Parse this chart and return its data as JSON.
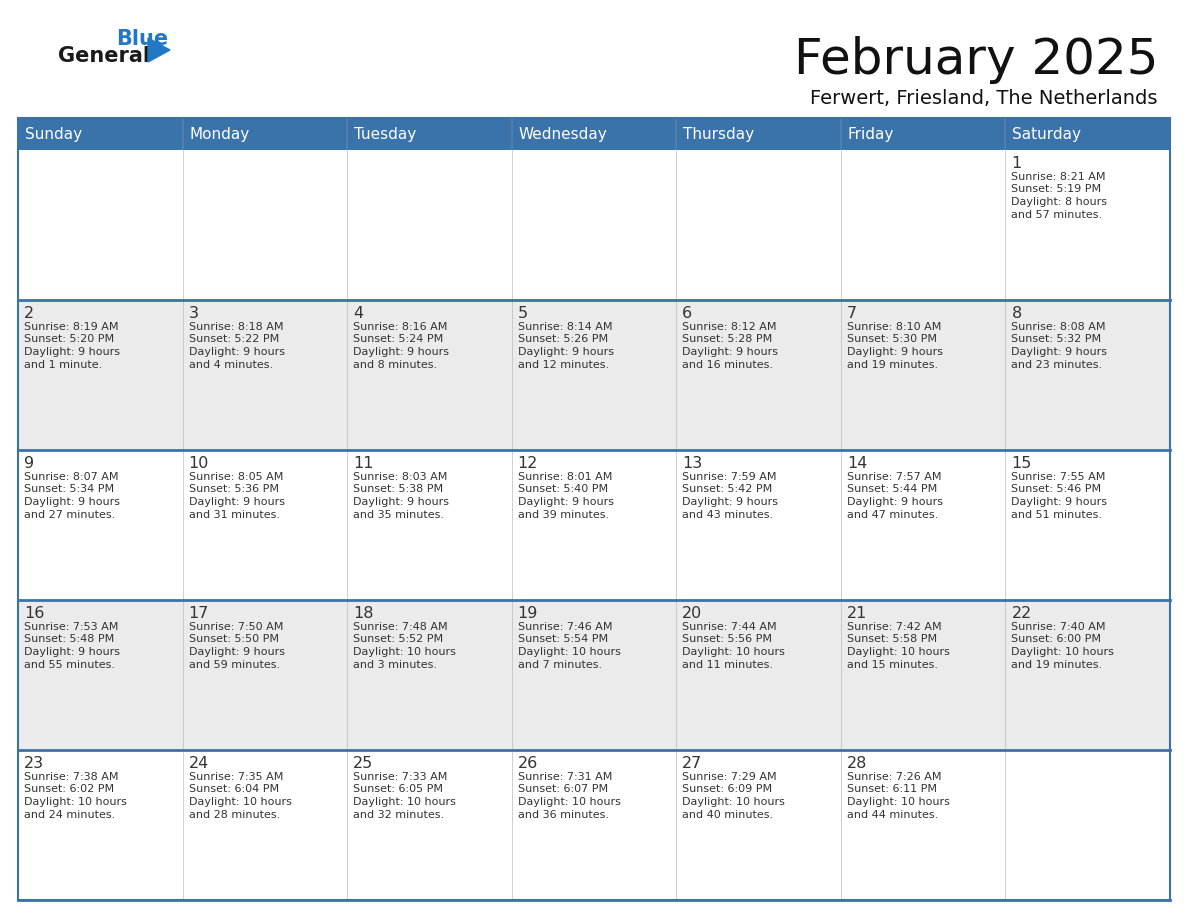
{
  "title": "February 2025",
  "subtitle": "Ferwert, Friesland, The Netherlands",
  "days_of_week": [
    "Sunday",
    "Monday",
    "Tuesday",
    "Wednesday",
    "Thursday",
    "Friday",
    "Saturday"
  ],
  "header_color": "#3a72aa",
  "header_text_color": "#ffffff",
  "cell_bg_row0": "#ebebeb",
  "cell_bg_row1": "#f5f5f5",
  "cell_bg_row2": "#ebebeb",
  "cell_bg_row3": "#f5f5f5",
  "cell_bg_row4": "#ebebeb",
  "border_color": "#3a72aa",
  "day_number_color": "#333333",
  "text_color": "#333333",
  "logo_general_color": "#1a1a1a",
  "logo_blue_color": "#2178c4",
  "calendar_data": [
    [
      {
        "day": null,
        "info": ""
      },
      {
        "day": null,
        "info": ""
      },
      {
        "day": null,
        "info": ""
      },
      {
        "day": null,
        "info": ""
      },
      {
        "day": null,
        "info": ""
      },
      {
        "day": null,
        "info": ""
      },
      {
        "day": 1,
        "info": "Sunrise: 8:21 AM\nSunset: 5:19 PM\nDaylight: 8 hours\nand 57 minutes."
      }
    ],
    [
      {
        "day": 2,
        "info": "Sunrise: 8:19 AM\nSunset: 5:20 PM\nDaylight: 9 hours\nand 1 minute."
      },
      {
        "day": 3,
        "info": "Sunrise: 8:18 AM\nSunset: 5:22 PM\nDaylight: 9 hours\nand 4 minutes."
      },
      {
        "day": 4,
        "info": "Sunrise: 8:16 AM\nSunset: 5:24 PM\nDaylight: 9 hours\nand 8 minutes."
      },
      {
        "day": 5,
        "info": "Sunrise: 8:14 AM\nSunset: 5:26 PM\nDaylight: 9 hours\nand 12 minutes."
      },
      {
        "day": 6,
        "info": "Sunrise: 8:12 AM\nSunset: 5:28 PM\nDaylight: 9 hours\nand 16 minutes."
      },
      {
        "day": 7,
        "info": "Sunrise: 8:10 AM\nSunset: 5:30 PM\nDaylight: 9 hours\nand 19 minutes."
      },
      {
        "day": 8,
        "info": "Sunrise: 8:08 AM\nSunset: 5:32 PM\nDaylight: 9 hours\nand 23 minutes."
      }
    ],
    [
      {
        "day": 9,
        "info": "Sunrise: 8:07 AM\nSunset: 5:34 PM\nDaylight: 9 hours\nand 27 minutes."
      },
      {
        "day": 10,
        "info": "Sunrise: 8:05 AM\nSunset: 5:36 PM\nDaylight: 9 hours\nand 31 minutes."
      },
      {
        "day": 11,
        "info": "Sunrise: 8:03 AM\nSunset: 5:38 PM\nDaylight: 9 hours\nand 35 minutes."
      },
      {
        "day": 12,
        "info": "Sunrise: 8:01 AM\nSunset: 5:40 PM\nDaylight: 9 hours\nand 39 minutes."
      },
      {
        "day": 13,
        "info": "Sunrise: 7:59 AM\nSunset: 5:42 PM\nDaylight: 9 hours\nand 43 minutes."
      },
      {
        "day": 14,
        "info": "Sunrise: 7:57 AM\nSunset: 5:44 PM\nDaylight: 9 hours\nand 47 minutes."
      },
      {
        "day": 15,
        "info": "Sunrise: 7:55 AM\nSunset: 5:46 PM\nDaylight: 9 hours\nand 51 minutes."
      }
    ],
    [
      {
        "day": 16,
        "info": "Sunrise: 7:53 AM\nSunset: 5:48 PM\nDaylight: 9 hours\nand 55 minutes."
      },
      {
        "day": 17,
        "info": "Sunrise: 7:50 AM\nSunset: 5:50 PM\nDaylight: 9 hours\nand 59 minutes."
      },
      {
        "day": 18,
        "info": "Sunrise: 7:48 AM\nSunset: 5:52 PM\nDaylight: 10 hours\nand 3 minutes."
      },
      {
        "day": 19,
        "info": "Sunrise: 7:46 AM\nSunset: 5:54 PM\nDaylight: 10 hours\nand 7 minutes."
      },
      {
        "day": 20,
        "info": "Sunrise: 7:44 AM\nSunset: 5:56 PM\nDaylight: 10 hours\nand 11 minutes."
      },
      {
        "day": 21,
        "info": "Sunrise: 7:42 AM\nSunset: 5:58 PM\nDaylight: 10 hours\nand 15 minutes."
      },
      {
        "day": 22,
        "info": "Sunrise: 7:40 AM\nSunset: 6:00 PM\nDaylight: 10 hours\nand 19 minutes."
      }
    ],
    [
      {
        "day": 23,
        "info": "Sunrise: 7:38 AM\nSunset: 6:02 PM\nDaylight: 10 hours\nand 24 minutes."
      },
      {
        "day": 24,
        "info": "Sunrise: 7:35 AM\nSunset: 6:04 PM\nDaylight: 10 hours\nand 28 minutes."
      },
      {
        "day": 25,
        "info": "Sunrise: 7:33 AM\nSunset: 6:05 PM\nDaylight: 10 hours\nand 32 minutes."
      },
      {
        "day": 26,
        "info": "Sunrise: 7:31 AM\nSunset: 6:07 PM\nDaylight: 10 hours\nand 36 minutes."
      },
      {
        "day": 27,
        "info": "Sunrise: 7:29 AM\nSunset: 6:09 PM\nDaylight: 10 hours\nand 40 minutes."
      },
      {
        "day": 28,
        "info": "Sunrise: 7:26 AM\nSunset: 6:11 PM\nDaylight: 10 hours\nand 44 minutes."
      },
      {
        "day": null,
        "info": ""
      }
    ]
  ],
  "row_bg_colors": [
    "#ffffff",
    "#ebebeb",
    "#ffffff",
    "#ebebeb",
    "#ffffff"
  ]
}
